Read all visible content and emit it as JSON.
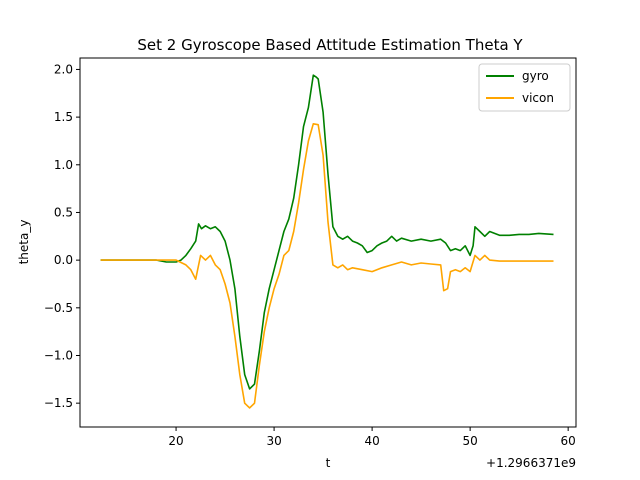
{
  "chart_data": {
    "type": "line",
    "title": "Set 2 Gyroscope Based Attitude Estimation Theta Y",
    "xlabel": "t",
    "ylabel": "theta_y",
    "x_offset_label": "+1.2966371e9",
    "xlim": [
      10.2,
      60.8
    ],
    "ylim": [
      -1.75,
      2.12
    ],
    "x_ticks": [
      {
        "value": 20,
        "label": "20"
      },
      {
        "value": 30,
        "label": "30"
      },
      {
        "value": 40,
        "label": "40"
      },
      {
        "value": 50,
        "label": "50"
      },
      {
        "value": 60,
        "label": "60"
      }
    ],
    "y_ticks": [
      {
        "value": -1.5,
        "label": "−1.5"
      },
      {
        "value": -1.0,
        "label": "−1.0"
      },
      {
        "value": -0.5,
        "label": "−0.5"
      },
      {
        "value": 0.0,
        "label": "0.0"
      },
      {
        "value": 0.5,
        "label": "0.5"
      },
      {
        "value": 1.0,
        "label": "1.0"
      },
      {
        "value": 1.5,
        "label": "1.5"
      },
      {
        "value": 2.0,
        "label": "2.0"
      }
    ],
    "grid": false,
    "legend": "top-right",
    "series": [
      {
        "name": "gyro",
        "color": "#008000",
        "points": [
          [
            12.3,
            0.0
          ],
          [
            15.0,
            0.0
          ],
          [
            18.0,
            0.0
          ],
          [
            19.0,
            -0.02
          ],
          [
            20.0,
            -0.02
          ],
          [
            20.5,
            0.0
          ],
          [
            21.0,
            0.05
          ],
          [
            21.5,
            0.12
          ],
          [
            22.0,
            0.2
          ],
          [
            22.3,
            0.38
          ],
          [
            22.6,
            0.33
          ],
          [
            23.0,
            0.36
          ],
          [
            23.5,
            0.33
          ],
          [
            24.0,
            0.35
          ],
          [
            24.5,
            0.3
          ],
          [
            25.0,
            0.2
          ],
          [
            25.5,
            0.0
          ],
          [
            26.0,
            -0.3
          ],
          [
            26.5,
            -0.8
          ],
          [
            27.0,
            -1.2
          ],
          [
            27.5,
            -1.35
          ],
          [
            28.0,
            -1.3
          ],
          [
            28.5,
            -0.95
          ],
          [
            29.0,
            -0.55
          ],
          [
            29.5,
            -0.3
          ],
          [
            30.0,
            -0.1
          ],
          [
            30.5,
            0.1
          ],
          [
            31.0,
            0.3
          ],
          [
            31.5,
            0.43
          ],
          [
            32.0,
            0.65
          ],
          [
            32.5,
            1.0
          ],
          [
            33.0,
            1.4
          ],
          [
            33.5,
            1.6
          ],
          [
            34.0,
            1.94
          ],
          [
            34.3,
            1.92
          ],
          [
            34.5,
            1.9
          ],
          [
            35.0,
            1.55
          ],
          [
            35.5,
            0.9
          ],
          [
            36.0,
            0.35
          ],
          [
            36.5,
            0.25
          ],
          [
            37.0,
            0.22
          ],
          [
            37.5,
            0.25
          ],
          [
            38.0,
            0.2
          ],
          [
            38.5,
            0.18
          ],
          [
            39.0,
            0.15
          ],
          [
            39.5,
            0.08
          ],
          [
            40.0,
            0.1
          ],
          [
            40.5,
            0.15
          ],
          [
            41.0,
            0.18
          ],
          [
            41.5,
            0.2
          ],
          [
            42.0,
            0.25
          ],
          [
            42.5,
            0.2
          ],
          [
            43.0,
            0.23
          ],
          [
            44.0,
            0.2
          ],
          [
            45.0,
            0.22
          ],
          [
            46.0,
            0.2
          ],
          [
            47.0,
            0.22
          ],
          [
            47.5,
            0.18
          ],
          [
            48.0,
            0.1
          ],
          [
            48.5,
            0.12
          ],
          [
            49.0,
            0.1
          ],
          [
            49.5,
            0.15
          ],
          [
            50.0,
            0.05
          ],
          [
            50.3,
            0.15
          ],
          [
            50.5,
            0.35
          ],
          [
            51.0,
            0.3
          ],
          [
            51.5,
            0.25
          ],
          [
            52.0,
            0.3
          ],
          [
            53.0,
            0.26
          ],
          [
            54.0,
            0.26
          ],
          [
            55.0,
            0.27
          ],
          [
            56.0,
            0.27
          ],
          [
            57.0,
            0.28
          ],
          [
            58.5,
            0.27
          ]
        ]
      },
      {
        "name": "vicon",
        "color": "#ffa500",
        "points": [
          [
            12.3,
            0.0
          ],
          [
            15.0,
            0.0
          ],
          [
            18.0,
            0.0
          ],
          [
            19.0,
            0.0
          ],
          [
            20.0,
            0.0
          ],
          [
            21.0,
            -0.05
          ],
          [
            21.5,
            -0.1
          ],
          [
            22.0,
            -0.2
          ],
          [
            22.5,
            0.05
          ],
          [
            23.0,
            0.0
          ],
          [
            23.5,
            0.05
          ],
          [
            24.0,
            -0.05
          ],
          [
            24.5,
            -0.1
          ],
          [
            25.0,
            -0.25
          ],
          [
            25.5,
            -0.45
          ],
          [
            26.0,
            -0.8
          ],
          [
            26.5,
            -1.2
          ],
          [
            27.0,
            -1.5
          ],
          [
            27.5,
            -1.55
          ],
          [
            28.0,
            -1.5
          ],
          [
            28.5,
            -1.1
          ],
          [
            29.0,
            -0.75
          ],
          [
            29.5,
            -0.5
          ],
          [
            30.0,
            -0.3
          ],
          [
            30.5,
            -0.15
          ],
          [
            31.0,
            0.05
          ],
          [
            31.5,
            0.1
          ],
          [
            32.0,
            0.3
          ],
          [
            32.5,
            0.6
          ],
          [
            33.0,
            0.95
          ],
          [
            33.5,
            1.25
          ],
          [
            34.0,
            1.43
          ],
          [
            34.5,
            1.42
          ],
          [
            35.0,
            1.1
          ],
          [
            35.5,
            0.4
          ],
          [
            36.0,
            -0.05
          ],
          [
            36.5,
            -0.08
          ],
          [
            37.0,
            -0.05
          ],
          [
            37.5,
            -0.1
          ],
          [
            38.0,
            -0.08
          ],
          [
            39.0,
            -0.1
          ],
          [
            40.0,
            -0.12
          ],
          [
            41.0,
            -0.08
          ],
          [
            42.0,
            -0.05
          ],
          [
            43.0,
            -0.02
          ],
          [
            44.0,
            -0.05
          ],
          [
            45.0,
            -0.03
          ],
          [
            46.0,
            -0.04
          ],
          [
            47.0,
            -0.05
          ],
          [
            47.3,
            -0.32
          ],
          [
            47.7,
            -0.3
          ],
          [
            48.0,
            -0.12
          ],
          [
            48.5,
            -0.1
          ],
          [
            49.0,
            -0.12
          ],
          [
            49.5,
            -0.08
          ],
          [
            50.0,
            -0.12
          ],
          [
            50.5,
            0.05
          ],
          [
            51.0,
            0.0
          ],
          [
            51.5,
            0.05
          ],
          [
            52.0,
            0.0
          ],
          [
            53.0,
            -0.01
          ],
          [
            55.0,
            -0.01
          ],
          [
            58.5,
            -0.01
          ]
        ]
      }
    ]
  }
}
